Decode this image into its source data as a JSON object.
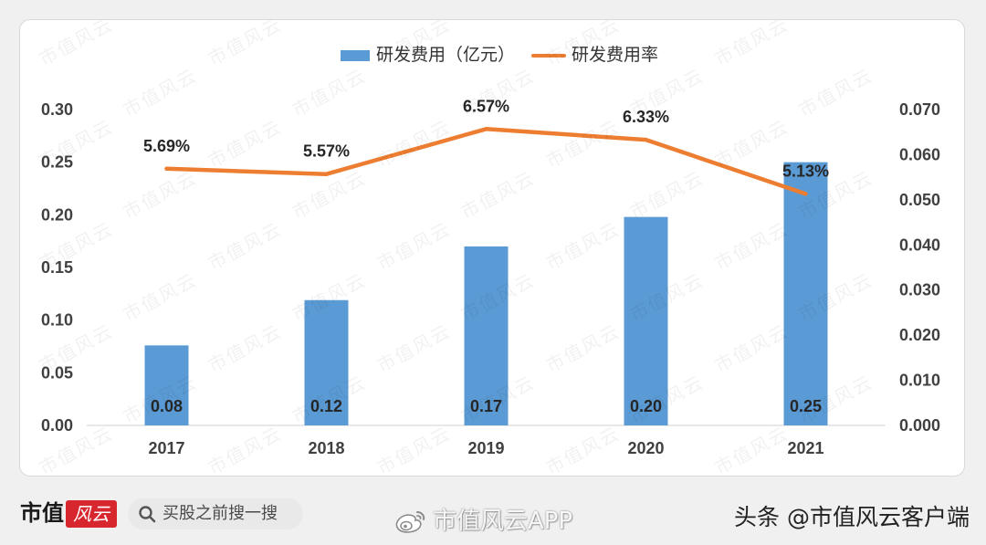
{
  "chart_data": {
    "type": "bar",
    "categories": [
      "2017",
      "2018",
      "2019",
      "2020",
      "2021"
    ],
    "series": [
      {
        "name": "研发费用（亿元）",
        "type": "bar",
        "y_axis": "left",
        "values": [
          0.076,
          0.119,
          0.17,
          0.198,
          0.25
        ],
        "labels": [
          "0.08",
          "0.12",
          "0.17",
          "0.20",
          "0.25"
        ],
        "color": "#5B9BD5"
      },
      {
        "name": "研发费用率",
        "type": "line",
        "y_axis": "right",
        "values": [
          0.0569,
          0.0557,
          0.0657,
          0.0633,
          0.0513
        ],
        "labels": [
          "5.69%",
          "5.57%",
          "6.57%",
          "6.33%",
          "5.13%"
        ],
        "color": "#ED7D31"
      }
    ],
    "y_left": {
      "range": [
        0,
        0.3
      ],
      "ticks": [
        "0.00",
        "0.05",
        "0.10",
        "0.15",
        "0.20",
        "0.25",
        "0.30"
      ]
    },
    "y_right": {
      "range": [
        0,
        0.07
      ],
      "ticks": [
        "0.000",
        "0.010",
        "0.020",
        "0.030",
        "0.040",
        "0.050",
        "0.060",
        "0.070"
      ]
    },
    "legend_position": "top-center",
    "grid": false
  },
  "watermark": {
    "text": "市值风云"
  },
  "footer": {
    "logo": {
      "main": "市值",
      "badge": "风云"
    },
    "search": {
      "placeholder": "买股之前搜一搜",
      "icon": "search-icon"
    },
    "share_watermark": {
      "icon": "weibo-icon",
      "text": "市值风云APP"
    },
    "source": "头条 @市值风云客户端"
  }
}
